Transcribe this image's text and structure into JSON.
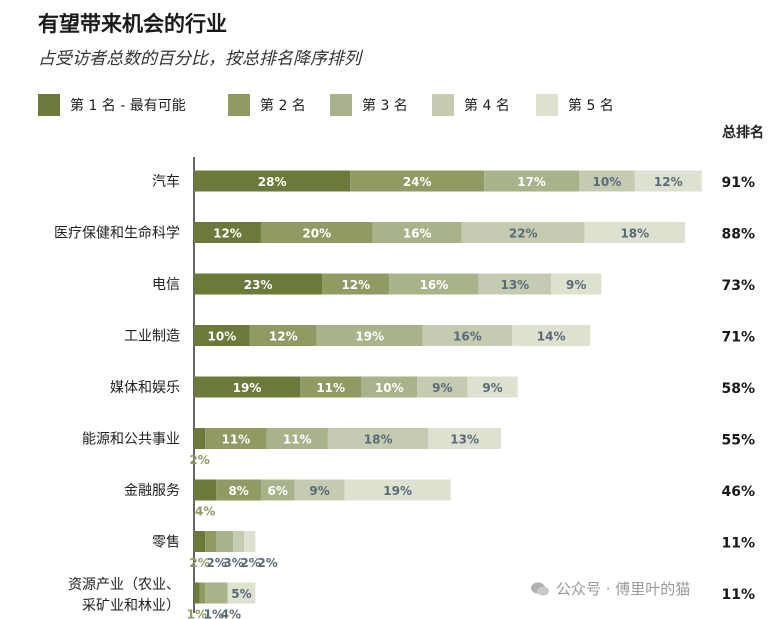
{
  "title": "有望带来机会的行业",
  "subtitle": "占受访者总数的百分比，按总排名降序排列",
  "total_header": "总排名",
  "watermark": "公众号 · 傅里叶的猫",
  "colors": {
    "rank1": "#6b7a3a",
    "rank2": "#8f9b62",
    "rank3": "#a9b38a",
    "rank4": "#c4cbb0",
    "rank5": "#dde1d0",
    "label_dark_text": "#ffffff",
    "label_light_text": "#5a6a78",
    "axis": "#333333"
  },
  "chart_data": {
    "type": "bar",
    "orientation": "horizontal",
    "stacked": true,
    "categories": [
      "汽车",
      "医疗保健和生命科学",
      "电信",
      "工业制造",
      "媒体和娱乐",
      "能源和公共事业",
      "金融服务",
      "零售",
      "资源产业（农业、\n采矿业和林业）"
    ],
    "series": [
      {
        "name": "第 1 名 - 最有可能",
        "values": [
          28,
          12,
          23,
          10,
          19,
          2,
          4,
          2,
          1
        ]
      },
      {
        "name": "第 2 名",
        "values": [
          24,
          20,
          12,
          12,
          11,
          11,
          8,
          2,
          1
        ]
      },
      {
        "name": "第 3 名",
        "values": [
          17,
          16,
          16,
          19,
          10,
          11,
          6,
          3,
          4
        ]
      },
      {
        "name": "第 4 名",
        "values": [
          10,
          22,
          13,
          16,
          9,
          18,
          9,
          2,
          0
        ]
      },
      {
        "name": "第 5 名",
        "values": [
          12,
          18,
          9,
          14,
          9,
          13,
          19,
          2,
          5
        ]
      }
    ],
    "totals": [
      "91%",
      "88%",
      "73%",
      "71%",
      "58%",
      "55%",
      "46%",
      "11%",
      "11%"
    ],
    "value_suffix": "%",
    "xlim": [
      0,
      100
    ],
    "grid": false,
    "legend_position": "top"
  }
}
